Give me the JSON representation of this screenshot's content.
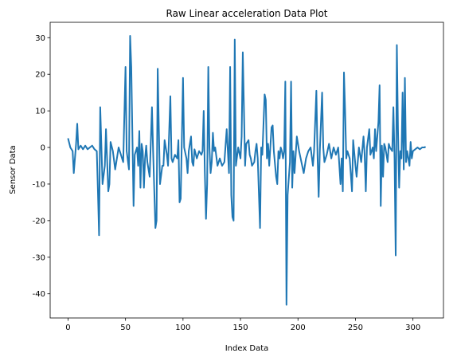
{
  "chart_data": {
    "type": "line",
    "title": "Raw Linear acceleration Data Plot",
    "x_label": "Index Data",
    "y_label": "Sensor Data",
    "xlim": [
      -15.55,
      326.55
    ],
    "ylim": [
      -46.6,
      34.2
    ],
    "xticks": [
      0,
      50,
      100,
      150,
      200,
      250,
      300
    ],
    "yticks": [
      -40,
      -30,
      -20,
      -10,
      0,
      10,
      20,
      30
    ],
    "series": [
      {
        "name": "Sensor Data",
        "color": "#1f77b4",
        "x": [
          0,
          2,
          4,
          5,
          7,
          8,
          9,
          11,
          13,
          15,
          17,
          19,
          21,
          23,
          25,
          26,
          27,
          28,
          30,
          32,
          33,
          35,
          36,
          37,
          39,
          41,
          44,
          46,
          48,
          50,
          51,
          53,
          54,
          55,
          57,
          58,
          60,
          61,
          62,
          63,
          64,
          65,
          66,
          67,
          68,
          69,
          71,
          73,
          74,
          76,
          77,
          78,
          79,
          80,
          82,
          83,
          84,
          86,
          87,
          89,
          90,
          91,
          93,
          95,
          96,
          97,
          98,
          100,
          101,
          103,
          104,
          105,
          107,
          108,
          109,
          110,
          112,
          114,
          116,
          117,
          118,
          119,
          120,
          121,
          122,
          123,
          124,
          125,
          126,
          127,
          128,
          130,
          132,
          134,
          136,
          138,
          140,
          141,
          142,
          143,
          144,
          145,
          146,
          148,
          150,
          151,
          152,
          154,
          155,
          157,
          158,
          159,
          160,
          162,
          163,
          164,
          165,
          167,
          168,
          169,
          171,
          172,
          173,
          174,
          175,
          177,
          178,
          179,
          181,
          182,
          183,
          184,
          185,
          186,
          187,
          188,
          189,
          190,
          191,
          193,
          194,
          195,
          196,
          197,
          199,
          201,
          203,
          205,
          207,
          209,
          211,
          213,
          214,
          216,
          217,
          218,
          219,
          221,
          222,
          223,
          225,
          227,
          229,
          231,
          233,
          235,
          237,
          238,
          239,
          240,
          241,
          242,
          243,
          245,
          247,
          248,
          250,
          251,
          253,
          255,
          257,
          258,
          259,
          260,
          262,
          263,
          265,
          266,
          267,
          268,
          270,
          271,
          272,
          273,
          274,
          275,
          276,
          278,
          279,
          280,
          282,
          283,
          284,
          285,
          286,
          287,
          288,
          289,
          290,
          291,
          292,
          293,
          294,
          295,
          297,
          298,
          299,
          300,
          302,
          304,
          306,
          308,
          310,
          311
        ],
        "values": [
          2.5,
          0,
          -1,
          -7,
          1,
          6.5,
          -0.5,
          0.5,
          -0.5,
          0.5,
          -0.5,
          0,
          0.5,
          -0.5,
          -1,
          -12,
          -24,
          11,
          -10,
          -5,
          5,
          -12,
          -10,
          1.5,
          -1,
          -6,
          0,
          -2,
          -4,
          22,
          -1,
          -6,
          30.5,
          22,
          -16,
          -2,
          0,
          -5,
          4.5,
          -11,
          1,
          -1,
          -11,
          -3,
          0.5,
          -4,
          -8,
          11,
          -1,
          -22,
          -20,
          21.5,
          5,
          -10,
          -5,
          -5,
          2,
          -2,
          -5,
          14,
          -3,
          -4,
          -2,
          -3,
          2,
          -15,
          -14,
          19,
          0,
          -3,
          -7,
          -1,
          3,
          -4,
          -5,
          -0.5,
          -3,
          -1,
          -2,
          -1,
          10,
          -7,
          -19.5,
          -10,
          22,
          0,
          -7,
          -4,
          4,
          -1,
          0,
          -5,
          -3,
          -5,
          -4,
          5,
          -7,
          22,
          -13,
          -19,
          -20,
          29.5,
          -5,
          0,
          -3,
          3,
          26,
          -5,
          1,
          2,
          -2,
          -3,
          -5,
          -4,
          -1,
          1,
          -3,
          -22,
          0,
          -2,
          14.5,
          13,
          -3,
          1,
          -5,
          5.5,
          6,
          -1,
          -8,
          -10,
          -1,
          -3,
          0,
          -1,
          -3,
          -1,
          18,
          -43,
          -13,
          -4,
          18,
          -11,
          -1,
          -7,
          3,
          -1,
          -4,
          -7,
          -3,
          -1,
          0,
          -5,
          -1,
          15.5,
          -2,
          -13.5,
          -1,
          15,
          0,
          -4,
          -2,
          1,
          -3,
          0,
          -2,
          0,
          -10,
          -3,
          -12,
          20.5,
          10,
          -3,
          -1,
          -3,
          -12,
          2,
          -5,
          -8,
          0,
          -4,
          3,
          -2,
          -12,
          0,
          5,
          -2,
          0,
          -3,
          5,
          -1,
          7,
          17,
          -16,
          0.5,
          -8,
          1,
          0,
          -4,
          1,
          0,
          -1,
          11,
          -3,
          -29.5,
          28,
          5,
          -11,
          -1,
          -3,
          15,
          -6,
          19,
          -4,
          -1,
          -5,
          1.5,
          -3,
          -1,
          -0.5,
          0,
          -0.5,
          0,
          0,
          0.2
        ]
      }
    ]
  }
}
